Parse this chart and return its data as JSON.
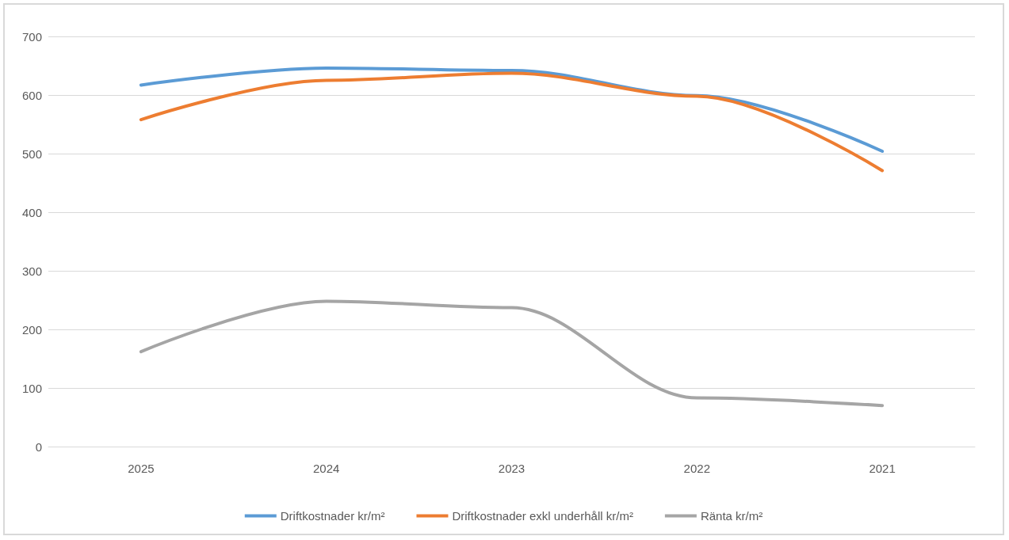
{
  "chart_data": {
    "type": "line",
    "categories": [
      "2025",
      "2024",
      "2023",
      "2022",
      "2021"
    ],
    "series": [
      {
        "name": "Driftkostnader kr/m²",
        "color": "#5b9bd5",
        "values": [
          617,
          646,
          642,
          599,
          504
        ]
      },
      {
        "name": "Driftkostnader exkl underhåll kr/m²",
        "color": "#ed7d31",
        "values": [
          558,
          625,
          637,
          598,
          471
        ]
      },
      {
        "name": "Ränta kr/m²",
        "color": "#a5a5a5",
        "values": [
          162,
          248,
          237,
          83,
          70
        ]
      }
    ],
    "ylim": [
      0,
      700
    ],
    "yticks": [
      0,
      100,
      200,
      300,
      400,
      500,
      600,
      700
    ],
    "grid": "y",
    "legend": "bottom",
    "marker": "none",
    "line_style": "solid"
  }
}
